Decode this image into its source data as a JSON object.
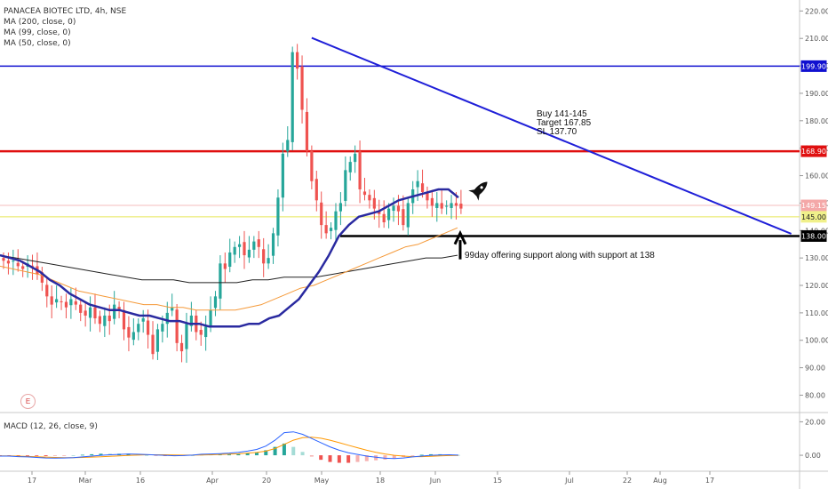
{
  "header": {
    "symbol_line": "PANACEA BIOTEC LTD, 4h, NSE",
    "indicators": [
      "MA (200, close, 0)",
      "MA (99, close, 0)",
      "MA (50, close, 0)"
    ]
  },
  "macd_label": "MACD (12, 26, close, 9)",
  "earnings_badge": "E",
  "annotations": {
    "trade_plan": [
      "Buy 141-145",
      "Target 167.85",
      "SL 137.70"
    ],
    "support_note": "99day offering support along with support at 138"
  },
  "colors": {
    "up_candle": "#26a69a",
    "down_candle": "#ef5350",
    "ma50": "#2a2aa0",
    "ma99": "#f59a3a",
    "ma200": "#222222",
    "blue_level": "#1010d0",
    "red_level": "#e01010",
    "yellow_level": "#e8e85a",
    "macd_line": "#2962ff",
    "signal_line": "#ff9800"
  },
  "chart_data": {
    "type": "candlestick",
    "timeframe": "4h",
    "y_axis": {
      "range": [
        74,
        224
      ],
      "ticks": [
        "220.00",
        "210.00",
        "200.00",
        "190.00",
        "180.00",
        "170.00",
        "160.00",
        "150.00",
        "140.00",
        "130.00",
        "120.00",
        "110.00",
        "100.00",
        "90.00",
        "80.00"
      ]
    },
    "x_axis": {
      "tick_labels": [
        "17",
        "Mar",
        "16",
        "Apr",
        "20",
        "May",
        "18",
        "Jun",
        "15",
        "Jul",
        "22",
        "Aug",
        "17"
      ]
    },
    "price_tags": [
      {
        "label": "199.90",
        "value": 199.9,
        "style": "blue"
      },
      {
        "label": "168.90",
        "value": 168.9,
        "style": "red"
      },
      {
        "label": "149.15",
        "value": 149.15,
        "style": "pink"
      },
      {
        "label": "145.00",
        "value": 145.0,
        "style": "yellow"
      },
      {
        "label": "138.00",
        "value": 138.0,
        "style": "black"
      }
    ],
    "horizontal_lines": [
      {
        "value": 199.9,
        "color": "blue"
      },
      {
        "value": 168.9,
        "color": "red"
      },
      {
        "value": 145.0,
        "color": "yellow"
      },
      {
        "value": 138.0,
        "color": "black",
        "from": "May",
        "to": "right-edge"
      }
    ],
    "trendline": {
      "from": [
        64,
        210.2
      ],
      "to": [
        123,
        138.8
      ]
    },
    "closes": [
      129,
      128,
      129,
      127,
      126,
      128,
      127,
      124,
      121,
      116,
      113,
      115,
      114,
      112,
      115,
      113,
      110,
      109,
      112,
      108,
      106,
      109,
      107,
      113,
      111,
      104,
      101,
      103,
      106,
      108,
      102,
      95,
      104,
      106,
      110,
      112,
      99,
      96,
      106,
      109,
      103,
      102,
      105,
      111,
      116,
      128,
      126,
      132,
      134,
      135,
      131,
      133,
      136,
      134,
      128,
      130,
      139,
      152,
      168,
      173,
      205,
      199,
      184,
      169,
      158,
      151,
      142,
      139,
      141,
      147,
      150,
      162,
      165,
      168,
      155,
      153,
      151,
      148,
      146,
      143,
      148,
      149,
      147,
      142,
      150,
      155,
      158,
      154,
      151,
      149,
      150,
      148,
      149,
      150,
      149,
      148
    ],
    "ma50": [
      131,
      130,
      129,
      127,
      125,
      122,
      120,
      117,
      115,
      113,
      112,
      111,
      111,
      110,
      109,
      109,
      108,
      107,
      107,
      106,
      106,
      105,
      105,
      105,
      105,
      106,
      106,
      108,
      109,
      112,
      115,
      120,
      125,
      131,
      138,
      142,
      145,
      146,
      147,
      149,
      151,
      152,
      153,
      154,
      155,
      155,
      152
    ],
    "ma99": [
      127,
      126,
      125,
      124,
      122,
      120,
      118,
      117,
      116,
      115,
      114,
      113,
      113,
      112,
      112,
      111,
      111,
      111,
      111,
      112,
      113,
      115,
      117,
      119,
      120,
      122,
      124,
      126,
      128,
      130,
      132,
      134,
      135,
      137,
      139,
      141
    ],
    "ma200": [
      131,
      130,
      129,
      128,
      127,
      126,
      125,
      124,
      123,
      122,
      122,
      122,
      121,
      121,
      121,
      121,
      122,
      122,
      123,
      123,
      123,
      124,
      125,
      126,
      127,
      128,
      129,
      130,
      130,
      131
    ],
    "macd": {
      "macd_line": [
        -0.5,
        -0.5,
        -0.8,
        -1.0,
        -1.3,
        -1.6,
        -1.7,
        -1.6,
        -1.4,
        -1.0,
        -0.5,
        0.0,
        0.3,
        0.5,
        0.8,
        0.6,
        0.4,
        0.2,
        0.0,
        -0.3,
        -0.2,
        0.1,
        0.6,
        0.8,
        1.0,
        1.3,
        1.8,
        2.5,
        3.5,
        5.5,
        9.0,
        13.5,
        14.0,
        12.5,
        10.0,
        7.5,
        5.0,
        3.0,
        1.5,
        0.5,
        -0.5,
        -1.2,
        -1.8,
        -2.0,
        -1.6,
        -1.0,
        -0.5,
        0.0,
        0.2,
        0.3,
        0.1
      ],
      "signal_line": [
        -0.4,
        -0.4,
        -0.5,
        -0.7,
        -0.9,
        -1.1,
        -1.3,
        -1.4,
        -1.4,
        -1.3,
        -1.1,
        -0.9,
        -0.6,
        -0.4,
        -0.1,
        0.1,
        0.3,
        0.3,
        0.3,
        0.2,
        0.1,
        0.1,
        0.2,
        0.3,
        0.5,
        0.7,
        0.9,
        1.3,
        1.7,
        2.5,
        4.0,
        6.5,
        9.0,
        10.5,
        10.8,
        10.2,
        9.0,
        7.5,
        6.0,
        4.5,
        3.0,
        1.8,
        0.8,
        0.0,
        -0.5,
        -0.8,
        -0.8,
        -0.6,
        -0.4,
        -0.2,
        -0.1
      ],
      "y_ticks": [
        "20.00",
        "0.00"
      ],
      "range": [
        -9,
        25
      ]
    }
  }
}
